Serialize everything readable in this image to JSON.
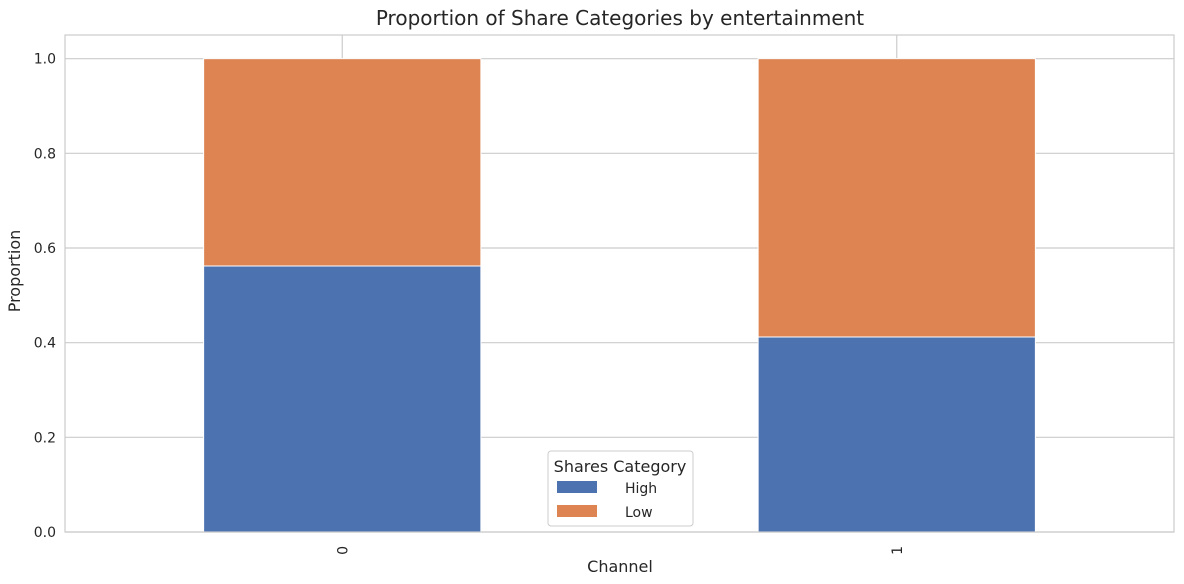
{
  "chart_data": {
    "type": "bar",
    "stacked": true,
    "title": "Proportion of Share Categories by entertainment",
    "xlabel": "Channel",
    "ylabel": "Proportion",
    "categories": [
      "0",
      "1"
    ],
    "series": [
      {
        "name": "High",
        "values": [
          0.562,
          0.412
        ]
      },
      {
        "name": "Low",
        "values": [
          0.438,
          0.588
        ]
      }
    ],
    "ylim": [
      0,
      1.05
    ],
    "yticks": [
      "0.0",
      "0.2",
      "0.4",
      "0.6",
      "0.8",
      "1.0"
    ],
    "grid": true,
    "legend": {
      "title": "Shares Category",
      "placement": "lower-center"
    },
    "colors": {
      "High": "#4c72b0",
      "Low": "#dd8452"
    }
  }
}
